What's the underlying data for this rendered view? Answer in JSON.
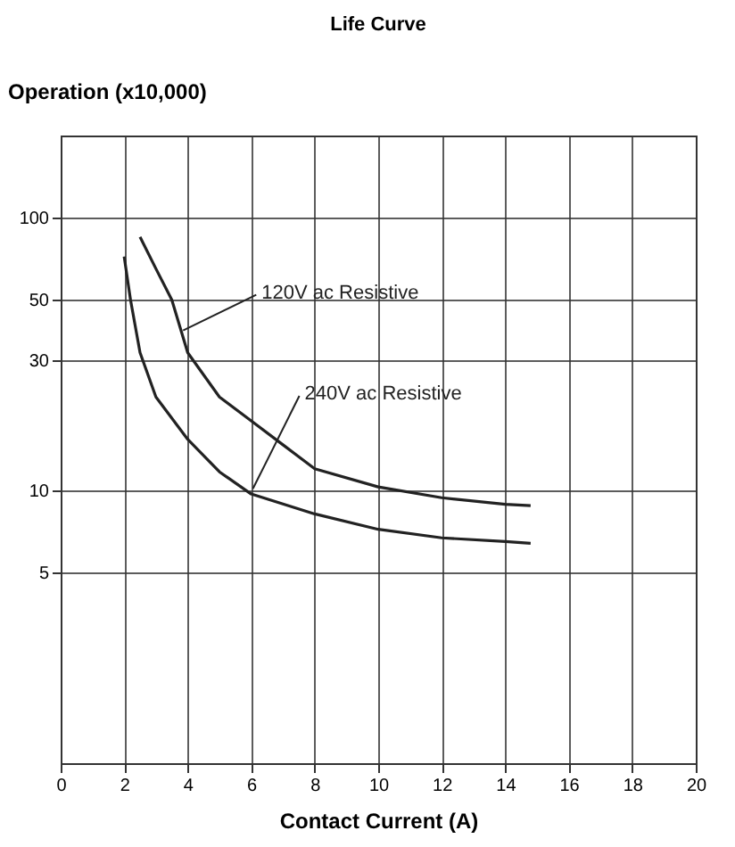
{
  "chart_data": {
    "type": "line",
    "title": "Life Curve",
    "xlabel": "Contact Current (A)",
    "ylabel": "Operation (x10,000)",
    "log": "y",
    "xlim": [
      0,
      20
    ],
    "xticks": [
      0,
      2,
      4,
      6,
      8,
      10,
      12,
      14,
      16,
      18,
      20
    ],
    "ylim": [
      1,
      200
    ],
    "yticks": [
      5,
      10,
      30,
      50,
      100
    ],
    "grid": true,
    "series": [
      {
        "color": "#222222",
        "x": [
          2.5,
          3,
          3.5,
          4,
          5,
          6,
          7,
          8,
          10,
          12,
          14,
          14.8
        ],
        "values": [
          85,
          65,
          50,
          32,
          22,
          18,
          14.7,
          12,
          10.3,
          9.4,
          8.9,
          8.8
        ]
      },
      {
        "color": "#222222",
        "x": [
          2,
          2.2,
          2.5,
          3,
          4,
          5,
          6,
          8,
          10,
          12,
          14,
          14.8
        ],
        "values": [
          72,
          50,
          32,
          22,
          15.4,
          11.7,
          9.7,
          8.2,
          7.2,
          6.7,
          6.5,
          6.4
        ]
      }
    ],
    "annotations": [
      {
        "text": "120V ac Resistive",
        "x": 3.8,
        "y": 38
      },
      {
        "text": "240V ac Resistive",
        "x": 6,
        "y": 10
      }
    ]
  }
}
